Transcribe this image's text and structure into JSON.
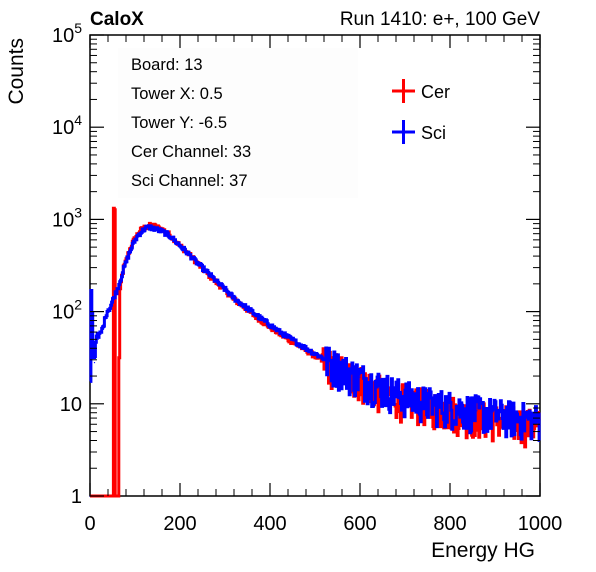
{
  "header": {
    "left_label": "CaloX",
    "right_label": "Run 1410: e+, 100 GeV"
  },
  "info_box": {
    "lines": [
      "Board: 13",
      "Tower X: 0.5",
      "Tower Y: -6.5",
      "Cer Channel: 33",
      "Sci Channel: 37"
    ]
  },
  "chart_data": {
    "type": "line",
    "title": "",
    "xlabel": "Energy HG",
    "ylabel": "Counts",
    "xlim": [
      0,
      1000
    ],
    "ylim": [
      1,
      100000
    ],
    "y_scale": "log",
    "x_ticks": [
      0,
      200,
      400,
      600,
      800,
      1000
    ],
    "y_tick_labels": [
      "1",
      "10",
      "10^2",
      "10^3",
      "10^4",
      "10^5"
    ],
    "legend": {
      "position": "top-right"
    },
    "colors": {
      "Cer": "#ff0000",
      "Sci": "#0000ff"
    },
    "series": [
      {
        "name": "Cer",
        "x": [
          0,
          52,
          53,
          54,
          55,
          56,
          57,
          60,
          63,
          66,
          70,
          75,
          80,
          85,
          90,
          95,
          100,
          105,
          110,
          115,
          120,
          125,
          130,
          135,
          140,
          145,
          150,
          155,
          160,
          170,
          180,
          190,
          200,
          220,
          240,
          260,
          280,
          300,
          320,
          340,
          360,
          380,
          400,
          420,
          440,
          460,
          480,
          500,
          520,
          540,
          560,
          580,
          600,
          620,
          640,
          660,
          680,
          700,
          720,
          740,
          760,
          780,
          800,
          820,
          840,
          860,
          880,
          900,
          920,
          940,
          960,
          980,
          1000
        ],
        "y": [
          1,
          1,
          1300,
          1300,
          1300,
          1,
          1,
          1,
          1,
          150,
          230,
          300,
          350,
          420,
          490,
          560,
          620,
          680,
          740,
          780,
          810,
          830,
          850,
          860,
          860,
          840,
          820,
          800,
          780,
          730,
          660,
          590,
          520,
          420,
          330,
          260,
          210,
          170,
          135,
          115,
          95,
          80,
          68,
          58,
          50,
          44,
          38,
          33,
          29,
          25,
          23,
          20,
          18,
          16,
          14,
          13,
          12,
          11,
          10.5,
          10,
          9.5,
          9,
          8.5,
          8,
          7.5,
          7.2,
          7,
          6.8,
          6.6,
          6.4,
          6.2,
          6,
          5.8
        ]
      },
      {
        "name": "Sci",
        "x": [
          0,
          2,
          4,
          6,
          8,
          10,
          12,
          14,
          16,
          18,
          20,
          25,
          30,
          35,
          40,
          45,
          50,
          55,
          60,
          65,
          70,
          75,
          80,
          85,
          90,
          95,
          100,
          105,
          110,
          115,
          120,
          125,
          130,
          135,
          140,
          145,
          150,
          155,
          160,
          170,
          180,
          190,
          200,
          220,
          240,
          260,
          280,
          300,
          320,
          340,
          360,
          380,
          400,
          420,
          440,
          460,
          480,
          500,
          520,
          540,
          560,
          580,
          600,
          620,
          640,
          660,
          680,
          700,
          720,
          740,
          760,
          780,
          800,
          820,
          840,
          860,
          880,
          900,
          920,
          940,
          960,
          980,
          1000
        ],
        "y": [
          1,
          200,
          150,
          60,
          35,
          28,
          40,
          55,
          60,
          50,
          55,
          60,
          70,
          90,
          105,
          110,
          130,
          150,
          170,
          200,
          240,
          290,
          340,
          400,
          460,
          530,
          590,
          650,
          700,
          740,
          780,
          810,
          820,
          820,
          800,
          790,
          770,
          760,
          740,
          700,
          650,
          580,
          520,
          420,
          330,
          270,
          215,
          175,
          140,
          118,
          100,
          84,
          72,
          61,
          53,
          46,
          40,
          35,
          31,
          27,
          24,
          21.5,
          19.5,
          17.5,
          16,
          14.5,
          13.2,
          12.2,
          11.4,
          10.7,
          10.2,
          9.8,
          9.4,
          9,
          8.7,
          8.4,
          8.1,
          7.8,
          7.5,
          7.3,
          7.1,
          6.9,
          6.7
        ]
      }
    ]
  }
}
